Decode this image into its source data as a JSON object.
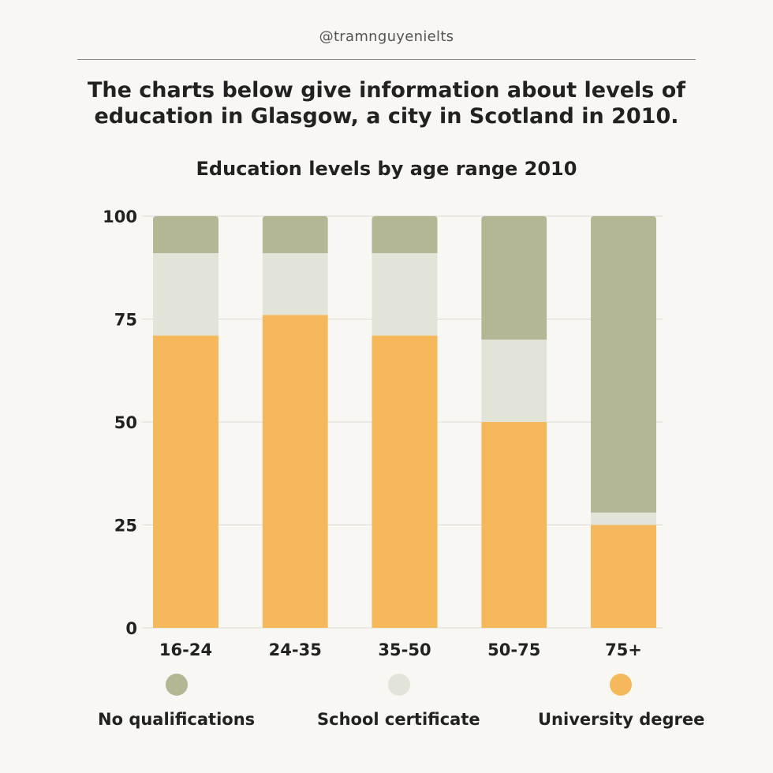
{
  "handle": "@tramnguyenielts",
  "heading_line1": "The charts below give information about levels of",
  "heading_line2": "education in Glasgow, a city in Scotland in 2010.",
  "chart_data": {
    "type": "bar",
    "stacked": true,
    "title": "Education levels by age range 2010",
    "xlabel": "",
    "ylabel": "",
    "categories": [
      "16-24",
      "24-35",
      "35-50",
      "50-75",
      "75+"
    ],
    "ylim": [
      0,
      100
    ],
    "yticks": [
      0,
      25,
      50,
      75,
      100
    ],
    "grid": true,
    "legend_placement": "bottom",
    "series": [
      {
        "name": "University degree",
        "color": "#f5b95c",
        "values": [
          71,
          76,
          71,
          50,
          25
        ]
      },
      {
        "name": "School certificate",
        "color": "#e3e4d8",
        "values": [
          20,
          15,
          20,
          20,
          3
        ]
      },
      {
        "name": "No qualifications",
        "color": "#b4b694",
        "values": [
          9,
          9,
          9,
          30,
          72
        ]
      }
    ]
  },
  "legend": [
    {
      "name": "No qualifications",
      "color": "#b4b694"
    },
    {
      "name": "School certificate",
      "color": "#e3e4d8"
    },
    {
      "name": "University degree",
      "color": "#f5b95c"
    }
  ],
  "colors": {
    "background": "#f8f7f3",
    "grid": "#dcdcd6",
    "text": "#222222"
  }
}
